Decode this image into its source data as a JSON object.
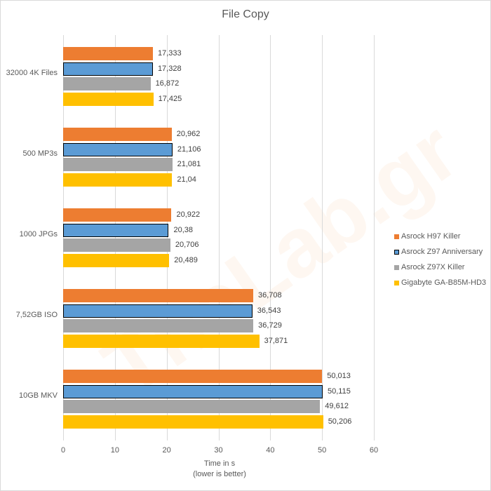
{
  "chart_data": {
    "type": "bar",
    "orientation": "horizontal",
    "title": "File Copy",
    "xlabel": "Time in s",
    "xlabel_sub": "(lower is better)",
    "ylabel": "",
    "xlim": [
      0,
      60
    ],
    "x_ticks": [
      "0",
      "10",
      "20",
      "30",
      "40",
      "50",
      "60"
    ],
    "grid": true,
    "legend_position": "right",
    "categories": [
      "32000 4K Files",
      "500 MP3s",
      "1000 JPGs",
      "7,52GB ISO",
      "10GB MKV"
    ],
    "series": [
      {
        "name": "Asrock H97 Killer",
        "color": "#ED7D31",
        "outlined": false,
        "values": [
          17.333,
          20.962,
          20.922,
          36.708,
          50.013
        ],
        "labels": [
          "17,333",
          "20,962",
          "20,922",
          "36,708",
          "50,013"
        ]
      },
      {
        "name": "Asrock Z97 Anniversary",
        "color": "#5B9BD5",
        "outlined": true,
        "values": [
          17.328,
          21.106,
          20.38,
          36.543,
          50.115
        ],
        "labels": [
          "17,328",
          "21,106",
          "20,38",
          "36,543",
          "50,115"
        ]
      },
      {
        "name": "Asrock Z97X Killer",
        "color": "#A5A5A5",
        "outlined": false,
        "values": [
          16.872,
          21.081,
          20.706,
          36.729,
          49.612
        ],
        "labels": [
          "16,872",
          "21,081",
          "20,706",
          "36,729",
          "49,612"
        ]
      },
      {
        "name": "Gigabyte GA-B85M-HD3",
        "color": "#FFC000",
        "outlined": false,
        "values": [
          17.425,
          21.04,
          20.489,
          37.871,
          50.206
        ],
        "labels": [
          "17,425",
          "21,04",
          "20,489",
          "37,871",
          "50,206"
        ]
      }
    ]
  },
  "watermark": "TheLab.gr"
}
